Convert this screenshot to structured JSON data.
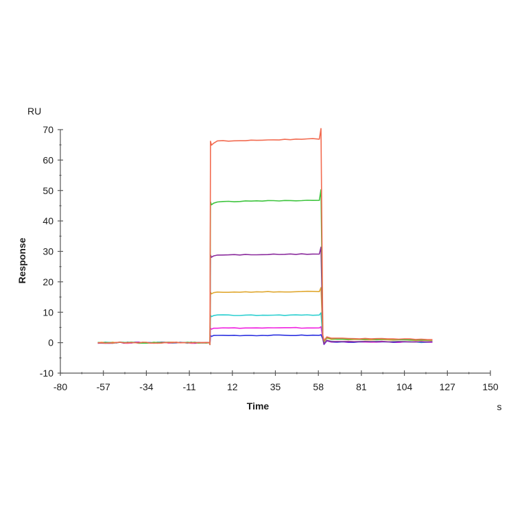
{
  "chart_data": {
    "type": "line",
    "title": "",
    "xlabel": "Time",
    "ylabel": "Response",
    "x_unit": "s",
    "y_unit": "RU",
    "xlim": [
      -80,
      150
    ],
    "ylim": [
      -10,
      70
    ],
    "x_ticks": [
      -80,
      -57,
      -34,
      -11,
      12,
      35,
      58,
      81,
      104,
      127,
      150
    ],
    "y_ticks": [
      -10,
      0,
      10,
      20,
      30,
      40,
      50,
      60,
      70
    ],
    "grid": false,
    "legend": "none",
    "phases": {
      "baseline_start": -60,
      "association_start": 0,
      "dissociation_start": 60,
      "end": 120
    },
    "series": [
      {
        "name": "curve-1",
        "color": "#f26a4f",
        "plateau": 66.2,
        "post": 1.5
      },
      {
        "name": "curve-2",
        "color": "#3cc43c",
        "plateau": 46.3,
        "post": 1.3
      },
      {
        "name": "curve-3",
        "color": "#8a2a9c",
        "plateau": 28.8,
        "post": 0.4
      },
      {
        "name": "curve-4",
        "color": "#e0a830",
        "plateau": 16.6,
        "post": 1.1
      },
      {
        "name": "curve-5",
        "color": "#2ccfd0",
        "plateau": 9.0,
        "post": 0.4
      },
      {
        "name": "curve-6",
        "color": "#f020e0",
        "plateau": 4.8,
        "post": 0.3
      },
      {
        "name": "curve-7",
        "color": "#2a30e0",
        "plateau": 2.4,
        "post": 0.2
      }
    ]
  },
  "labels": {
    "y_unit": "RU",
    "y_title": "Response",
    "x_title": "Time",
    "x_unit": "s"
  }
}
